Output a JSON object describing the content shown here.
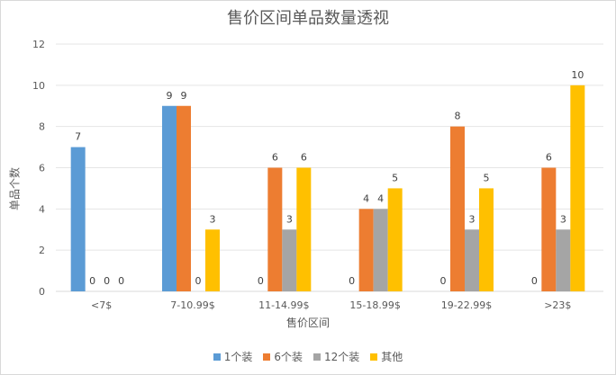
{
  "chart_data": {
    "type": "bar",
    "title": "售价区间单品数量透视",
    "xlabel": "售价区间",
    "ylabel": "单品个数",
    "ylim": [
      0,
      12
    ],
    "yticks": [
      0,
      2,
      4,
      6,
      8,
      10,
      12
    ],
    "grid": true,
    "legend_position": "bottom",
    "categories": [
      "<7$",
      "7-10.99$",
      "11-14.99$",
      "15-18.99$",
      "19-22.99$",
      ">23$"
    ],
    "series": [
      {
        "name": "1个装",
        "color": "#5b9bd5",
        "values": [
          7,
          9,
          0,
          0,
          0,
          0
        ]
      },
      {
        "name": "6个装",
        "color": "#ed7d31",
        "values": [
          0,
          9,
          6,
          4,
          8,
          6
        ]
      },
      {
        "name": "12个装",
        "color": "#a5a5a5",
        "values": [
          0,
          0,
          3,
          4,
          3,
          3
        ]
      },
      {
        "name": "其他",
        "color": "#ffc000",
        "values": [
          0,
          3,
          6,
          5,
          5,
          10
        ]
      }
    ]
  }
}
